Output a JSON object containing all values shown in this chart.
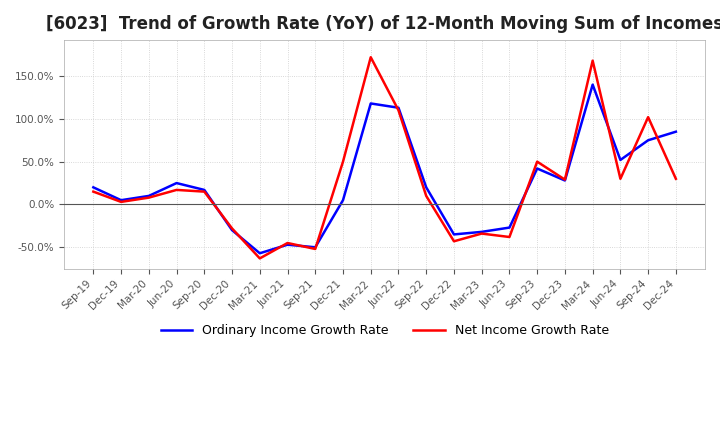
{
  "title": "[6023]  Trend of Growth Rate (YoY) of 12-Month Moving Sum of Incomes",
  "title_fontsize": 12,
  "background_color": "#ffffff",
  "grid_color": "#cccccc",
  "legend_ordinary": "Ordinary Income Growth Rate",
  "legend_net": "Net Income Growth Rate",
  "ordinary_color": "#0000ff",
  "net_color": "#ff0000",
  "x_labels": [
    "Sep-19",
    "Dec-19",
    "Mar-20",
    "Jun-20",
    "Sep-20",
    "Dec-20",
    "Mar-21",
    "Jun-21",
    "Sep-21",
    "Dec-21",
    "Mar-22",
    "Jun-22",
    "Sep-22",
    "Dec-22",
    "Mar-23",
    "Jun-23",
    "Sep-23",
    "Dec-23",
    "Mar-24",
    "Jun-24",
    "Sep-24",
    "Dec-24"
  ],
  "ordinary_values": [
    0.2,
    0.05,
    0.1,
    0.25,
    0.17,
    -0.3,
    -0.57,
    -0.47,
    -0.5,
    0.05,
    1.18,
    1.13,
    0.2,
    -0.35,
    -0.32,
    -0.27,
    0.42,
    0.28,
    1.4,
    0.52,
    0.75,
    0.85
  ],
  "net_values": [
    0.15,
    0.03,
    0.08,
    0.17,
    0.15,
    -0.28,
    -0.63,
    -0.45,
    -0.52,
    0.5,
    1.72,
    1.1,
    0.1,
    -0.43,
    -0.34,
    -0.38,
    0.5,
    0.29,
    1.68,
    0.3,
    1.02,
    0.3
  ],
  "yticks": [
    -0.5,
    0.0,
    0.5,
    1.0,
    1.5
  ],
  "ylim": [
    -0.75,
    1.92
  ],
  "line_width": 1.8
}
